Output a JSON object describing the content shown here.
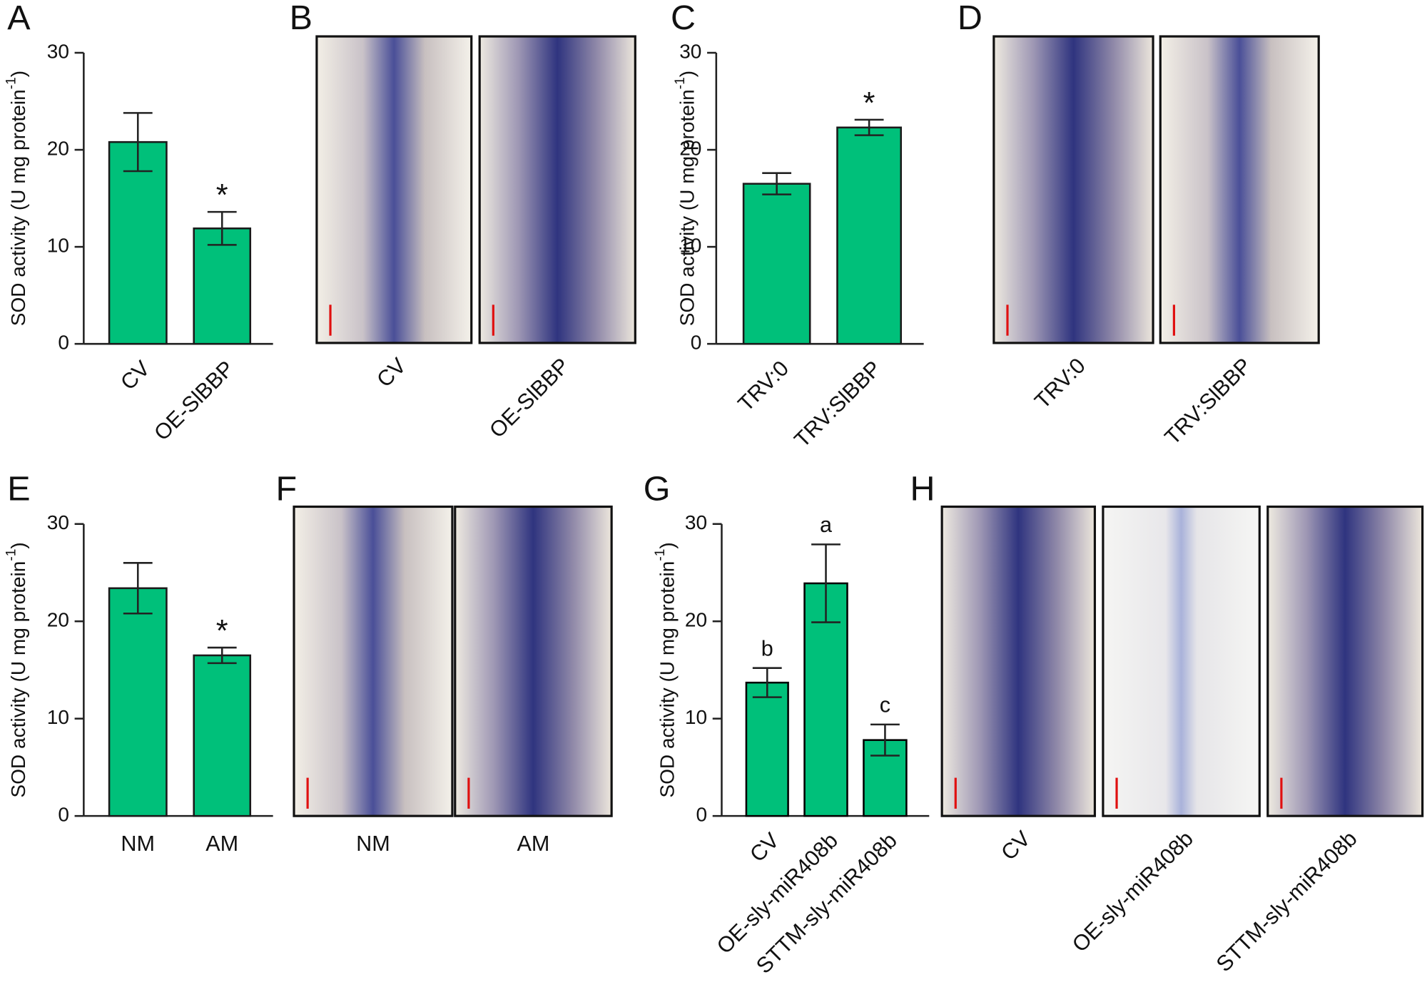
{
  "chart_data": [
    {
      "type": "bar",
      "panel": "A",
      "y_label": "SOD activity (U mg protein",
      "y_label_sup": "-1",
      "y_label_end": ")",
      "categories": [
        "CV",
        "OE-SlBBP"
      ],
      "values": [
        20.8,
        11.9
      ],
      "errors": [
        3.0,
        1.7
      ],
      "annotations": [
        null,
        "*"
      ],
      "color": "#00c07a",
      "edgecolor": "#1a1a1a",
      "ylim": [
        0,
        30
      ],
      "yticks": [
        0,
        10,
        20,
        30
      ],
      "rotated_labels": true
    },
    {
      "type": "bar",
      "panel": "C",
      "y_label": "SOD activity (U mg protein",
      "y_label_sup": "-1",
      "y_label_end": ")",
      "categories": [
        "TRV:0",
        "TRV:SlBBP"
      ],
      "values": [
        16.5,
        22.3
      ],
      "errors": [
        1.1,
        0.8
      ],
      "annotations": [
        null,
        "*"
      ],
      "color": "#00c07a",
      "edgecolor": "#1a1a1a",
      "ylim": [
        0,
        30
      ],
      "yticks": [
        0,
        10,
        20,
        30
      ],
      "rotated_labels": true
    },
    {
      "type": "bar",
      "panel": "E",
      "y_label": "SOD activity (U mg protein",
      "y_label_sup": "-1",
      "y_label_end": ")",
      "categories": [
        "NM",
        "AM"
      ],
      "values": [
        23.4,
        16.5
      ],
      "errors": [
        2.6,
        0.8
      ],
      "annotations": [
        null,
        "*"
      ],
      "color": "#00c07a",
      "edgecolor": "#1a1a1a",
      "ylim": [
        0,
        30
      ],
      "yticks": [
        0,
        10,
        20,
        30
      ],
      "rotated_labels": false
    },
    {
      "type": "bar",
      "panel": "G",
      "y_label": "SOD activity (U mg protein",
      "y_label_sup": "-1",
      "y_label_end": ")",
      "categories": [
        "CV",
        "OE-sly-miR408b",
        "STTM-sly-miR408b"
      ],
      "values": [
        13.7,
        23.9,
        7.8
      ],
      "errors": [
        1.5,
        4.0,
        1.6
      ],
      "annotations": [
        "b",
        "a",
        "c"
      ],
      "color": "#00c07a",
      "edgecolor": "#000000",
      "ylim": [
        0,
        30
      ],
      "yticks": [
        0,
        10,
        20,
        30
      ],
      "rotated_labels": true
    }
  ],
  "micrographs": [
    {
      "panel": "B",
      "captions": [
        "CV",
        "OE-SlBBP"
      ],
      "rotated_labels": true
    },
    {
      "panel": "D",
      "captions": [
        "TRV:0",
        "TRV:SlBBP"
      ],
      "rotated_labels": true
    },
    {
      "panel": "F",
      "captions": [
        "NM",
        "AM"
      ],
      "rotated_labels": false
    },
    {
      "panel": "H",
      "captions": [
        "CV",
        "OE-sly-miR408b",
        "STTM-sly-miR408b"
      ],
      "rotated_labels": true
    }
  ]
}
